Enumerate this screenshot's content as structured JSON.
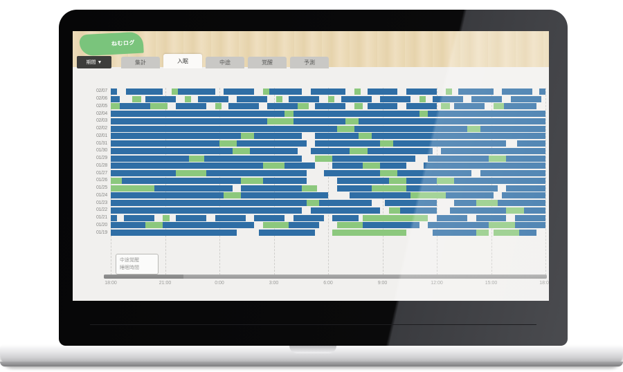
{
  "device": {
    "type": "laptop-mockup"
  },
  "header": {
    "logo_text": "ねむログ",
    "accent_green": "#7ac47c",
    "wood_color": "#ecdcba"
  },
  "toolbar": {
    "menu_button": "期間 ▼",
    "tabs": [
      {
        "label": "集計",
        "active": false
      },
      {
        "label": "入眠",
        "active": true
      },
      {
        "label": "中途",
        "active": false
      },
      {
        "label": "覚醒",
        "active": false
      },
      {
        "label": "予測",
        "active": false
      }
    ]
  },
  "legend": {
    "lines": [
      "中途覚醒",
      "睡眠時間"
    ]
  },
  "chart_data": {
    "type": "bar",
    "subtype": "horizontal-timeline (daily sleep log)",
    "title": "",
    "xlabel": "",
    "ylabel": "",
    "grid": "dashed-vertical",
    "legend_position": "bottom-left",
    "x_ticks": [
      "18:00",
      "21:00",
      "0:00",
      "3:00",
      "6:00",
      "9:00",
      "12:00",
      "15:00",
      "18:00"
    ],
    "colors": {
      "sleep": "#2f6ea5",
      "awake": "#8cc87d",
      "background": "#f1f0ee"
    },
    "series_legend": [
      {
        "name": "睡眠 (sleep)",
        "color": "#2f6ea5"
      },
      {
        "name": "覚醒 (awake)",
        "color": "#8cc87d"
      }
    ],
    "rows": [
      {
        "date": "02/07",
        "segments": [
          [
            0,
            1.5,
            "s"
          ],
          [
            3.5,
            12,
            "s"
          ],
          [
            14,
            15.5,
            "a"
          ],
          [
            15.5,
            24,
            "s"
          ],
          [
            26,
            33,
            "s"
          ],
          [
            35,
            36.5,
            "a"
          ],
          [
            36.5,
            44,
            "s"
          ],
          [
            46,
            54,
            "s"
          ],
          [
            56,
            57.5,
            "a"
          ],
          [
            59,
            66,
            "s"
          ],
          [
            68,
            75,
            "s"
          ],
          [
            77,
            78.5,
            "a"
          ],
          [
            80,
            88,
            "s"
          ],
          [
            90,
            97,
            "s"
          ],
          [
            98.5,
            100,
            "s"
          ]
        ]
      },
      {
        "date": "02/06",
        "segments": [
          [
            0,
            2,
            "s"
          ],
          [
            5,
            7,
            "a"
          ],
          [
            8,
            15,
            "s"
          ],
          [
            17,
            18.5,
            "a"
          ],
          [
            20,
            27,
            "s"
          ],
          [
            29,
            36,
            "s"
          ],
          [
            38,
            39.5,
            "a"
          ],
          [
            41,
            48,
            "s"
          ],
          [
            50,
            51.5,
            "a"
          ],
          [
            53,
            60,
            "s"
          ],
          [
            62,
            69,
            "s"
          ],
          [
            71,
            72.5,
            "a"
          ],
          [
            74,
            81,
            "s"
          ],
          [
            83,
            90,
            "s"
          ],
          [
            92,
            99,
            "s"
          ]
        ]
      },
      {
        "date": "02/05",
        "segments": [
          [
            0,
            2,
            "a"
          ],
          [
            2,
            9,
            "s"
          ],
          [
            9,
            13,
            "a"
          ],
          [
            15,
            22,
            "s"
          ],
          [
            24,
            25.5,
            "a"
          ],
          [
            27,
            34,
            "s"
          ],
          [
            36,
            43,
            "s"
          ],
          [
            43,
            45.5,
            "a"
          ],
          [
            47,
            54,
            "s"
          ],
          [
            56,
            58,
            "a"
          ],
          [
            59,
            66,
            "s"
          ],
          [
            68,
            75,
            "s"
          ],
          [
            76,
            78,
            "a"
          ],
          [
            79,
            86,
            "s"
          ],
          [
            88,
            90.5,
            "a"
          ],
          [
            90.5,
            98,
            "s"
          ]
        ]
      },
      {
        "date": "02/04",
        "segments": [
          [
            0,
            40,
            "s"
          ],
          [
            40,
            42,
            "a"
          ],
          [
            42,
            71,
            "s"
          ],
          [
            71,
            73,
            "a"
          ],
          [
            73,
            100,
            "s"
          ]
        ]
      },
      {
        "date": "02/03",
        "segments": [
          [
            0,
            36,
            "s"
          ],
          [
            36,
            42,
            "a"
          ],
          [
            42,
            54,
            "s"
          ],
          [
            54,
            57,
            "a"
          ],
          [
            57,
            100,
            "s"
          ]
        ]
      },
      {
        "date": "02/02",
        "segments": [
          [
            0,
            52,
            "s"
          ],
          [
            52,
            56,
            "a"
          ],
          [
            56,
            82,
            "s"
          ],
          [
            82,
            85,
            "a"
          ],
          [
            85,
            100,
            "s"
          ]
        ]
      },
      {
        "date": "02/01",
        "segments": [
          [
            0,
            30,
            "s"
          ],
          [
            30,
            33,
            "a"
          ],
          [
            33,
            44,
            "s"
          ],
          [
            47,
            57,
            "s"
          ],
          [
            57,
            60,
            "a"
          ],
          [
            60,
            100,
            "s"
          ]
        ]
      },
      {
        "date": "01/31",
        "segments": [
          [
            0,
            25,
            "s"
          ],
          [
            25,
            29,
            "a"
          ],
          [
            29,
            45,
            "s"
          ],
          [
            47,
            62,
            "s"
          ],
          [
            62,
            65,
            "a"
          ],
          [
            65,
            91,
            "s"
          ],
          [
            93.5,
            100,
            "s"
          ]
        ]
      },
      {
        "date": "01/30",
        "segments": [
          [
            0,
            28,
            "s"
          ],
          [
            28,
            32,
            "a"
          ],
          [
            32,
            43,
            "s"
          ],
          [
            46,
            55,
            "s"
          ],
          [
            55,
            59,
            "a"
          ],
          [
            59,
            74,
            "s"
          ],
          [
            76,
            100,
            "s"
          ]
        ]
      },
      {
        "date": "01/29",
        "segments": [
          [
            0,
            18,
            "s"
          ],
          [
            18,
            21.5,
            "a"
          ],
          [
            21.5,
            44,
            "s"
          ],
          [
            47,
            51,
            "a"
          ],
          [
            51,
            70,
            "s"
          ],
          [
            73,
            87,
            "s"
          ],
          [
            87,
            91,
            "a"
          ],
          [
            91,
            100,
            "s"
          ]
        ]
      },
      {
        "date": "01/28",
        "segments": [
          [
            0,
            35,
            "s"
          ],
          [
            35,
            40,
            "a"
          ],
          [
            40,
            47,
            "s"
          ],
          [
            51,
            58,
            "s"
          ],
          [
            58,
            62,
            "a"
          ],
          [
            62,
            68,
            "s"
          ],
          [
            72,
            100,
            "s"
          ]
        ]
      },
      {
        "date": "01/27",
        "segments": [
          [
            0,
            15,
            "s"
          ],
          [
            15,
            22,
            "a"
          ],
          [
            22,
            45,
            "s"
          ],
          [
            49,
            62,
            "s"
          ],
          [
            62,
            66,
            "a"
          ],
          [
            66,
            83,
            "s"
          ],
          [
            85,
            100,
            "s"
          ]
        ]
      },
      {
        "date": "01/26",
        "segments": [
          [
            0,
            2.5,
            "a"
          ],
          [
            2.5,
            30,
            "s"
          ],
          [
            30,
            35,
            "a"
          ],
          [
            35,
            45,
            "s"
          ],
          [
            52,
            64,
            "s"
          ],
          [
            64,
            68,
            "a"
          ],
          [
            68,
            75,
            "s"
          ],
          [
            75,
            79,
            "a"
          ],
          [
            79,
            100,
            "s"
          ]
        ]
      },
      {
        "date": "01/25",
        "segments": [
          [
            0,
            10,
            "a"
          ],
          [
            10,
            28,
            "s"
          ],
          [
            30,
            44,
            "s"
          ],
          [
            44,
            47.5,
            "a"
          ],
          [
            52,
            60,
            "s"
          ],
          [
            60,
            68,
            "a"
          ],
          [
            68,
            89,
            "s"
          ],
          [
            91,
            100,
            "s"
          ]
        ]
      },
      {
        "date": "01/24",
        "segments": [
          [
            0,
            26,
            "s"
          ],
          [
            26,
            30,
            "a"
          ],
          [
            30,
            50,
            "s"
          ],
          [
            55,
            69,
            "s"
          ],
          [
            69,
            77,
            "a"
          ],
          [
            77,
            88,
            "s"
          ],
          [
            90,
            100,
            "s"
          ]
        ]
      },
      {
        "date": "01/23",
        "segments": [
          [
            0,
            45,
            "s"
          ],
          [
            45,
            48,
            "a"
          ],
          [
            48,
            60,
            "s"
          ],
          [
            63,
            75,
            "s"
          ],
          [
            79,
            84,
            "s"
          ],
          [
            84,
            89,
            "a"
          ],
          [
            89,
            100,
            "s"
          ]
        ]
      },
      {
        "date": "01/22",
        "segments": [
          [
            0,
            44,
            "s"
          ],
          [
            46,
            62,
            "s"
          ],
          [
            64,
            66.5,
            "a"
          ],
          [
            66.5,
            75,
            "s"
          ],
          [
            78,
            91,
            "s"
          ],
          [
            91,
            95,
            "a"
          ],
          [
            95,
            100,
            "s"
          ]
        ]
      },
      {
        "date": "01/21",
        "segments": [
          [
            0,
            1.5,
            "s"
          ],
          [
            3,
            10,
            "s"
          ],
          [
            12,
            13.5,
            "a"
          ],
          [
            15,
            22,
            "s"
          ],
          [
            24,
            31,
            "s"
          ],
          [
            33,
            40,
            "s"
          ],
          [
            42,
            49,
            "s"
          ],
          [
            51,
            57,
            "s"
          ],
          [
            58,
            73,
            "a"
          ],
          [
            75,
            82,
            "s"
          ],
          [
            84,
            91,
            "s"
          ],
          [
            93,
            100,
            "s"
          ]
        ]
      },
      {
        "date": "01/20",
        "segments": [
          [
            0,
            8,
            "s"
          ],
          [
            8,
            12,
            "a"
          ],
          [
            12,
            33,
            "s"
          ],
          [
            35,
            41,
            "a"
          ],
          [
            41,
            48,
            "s"
          ],
          [
            52,
            58,
            "a"
          ],
          [
            58,
            71,
            "s"
          ],
          [
            73,
            87,
            "s"
          ],
          [
            87,
            93,
            "a"
          ],
          [
            93,
            100,
            "s"
          ]
        ]
      },
      {
        "date": "01/19",
        "segments": [
          [
            0,
            29,
            "s"
          ],
          [
            34,
            47,
            "s"
          ],
          [
            51,
            68,
            "a"
          ],
          [
            74,
            84,
            "s"
          ],
          [
            84,
            87,
            "a"
          ],
          [
            88,
            94,
            "a"
          ],
          [
            94,
            98,
            "s"
          ]
        ]
      }
    ]
  }
}
